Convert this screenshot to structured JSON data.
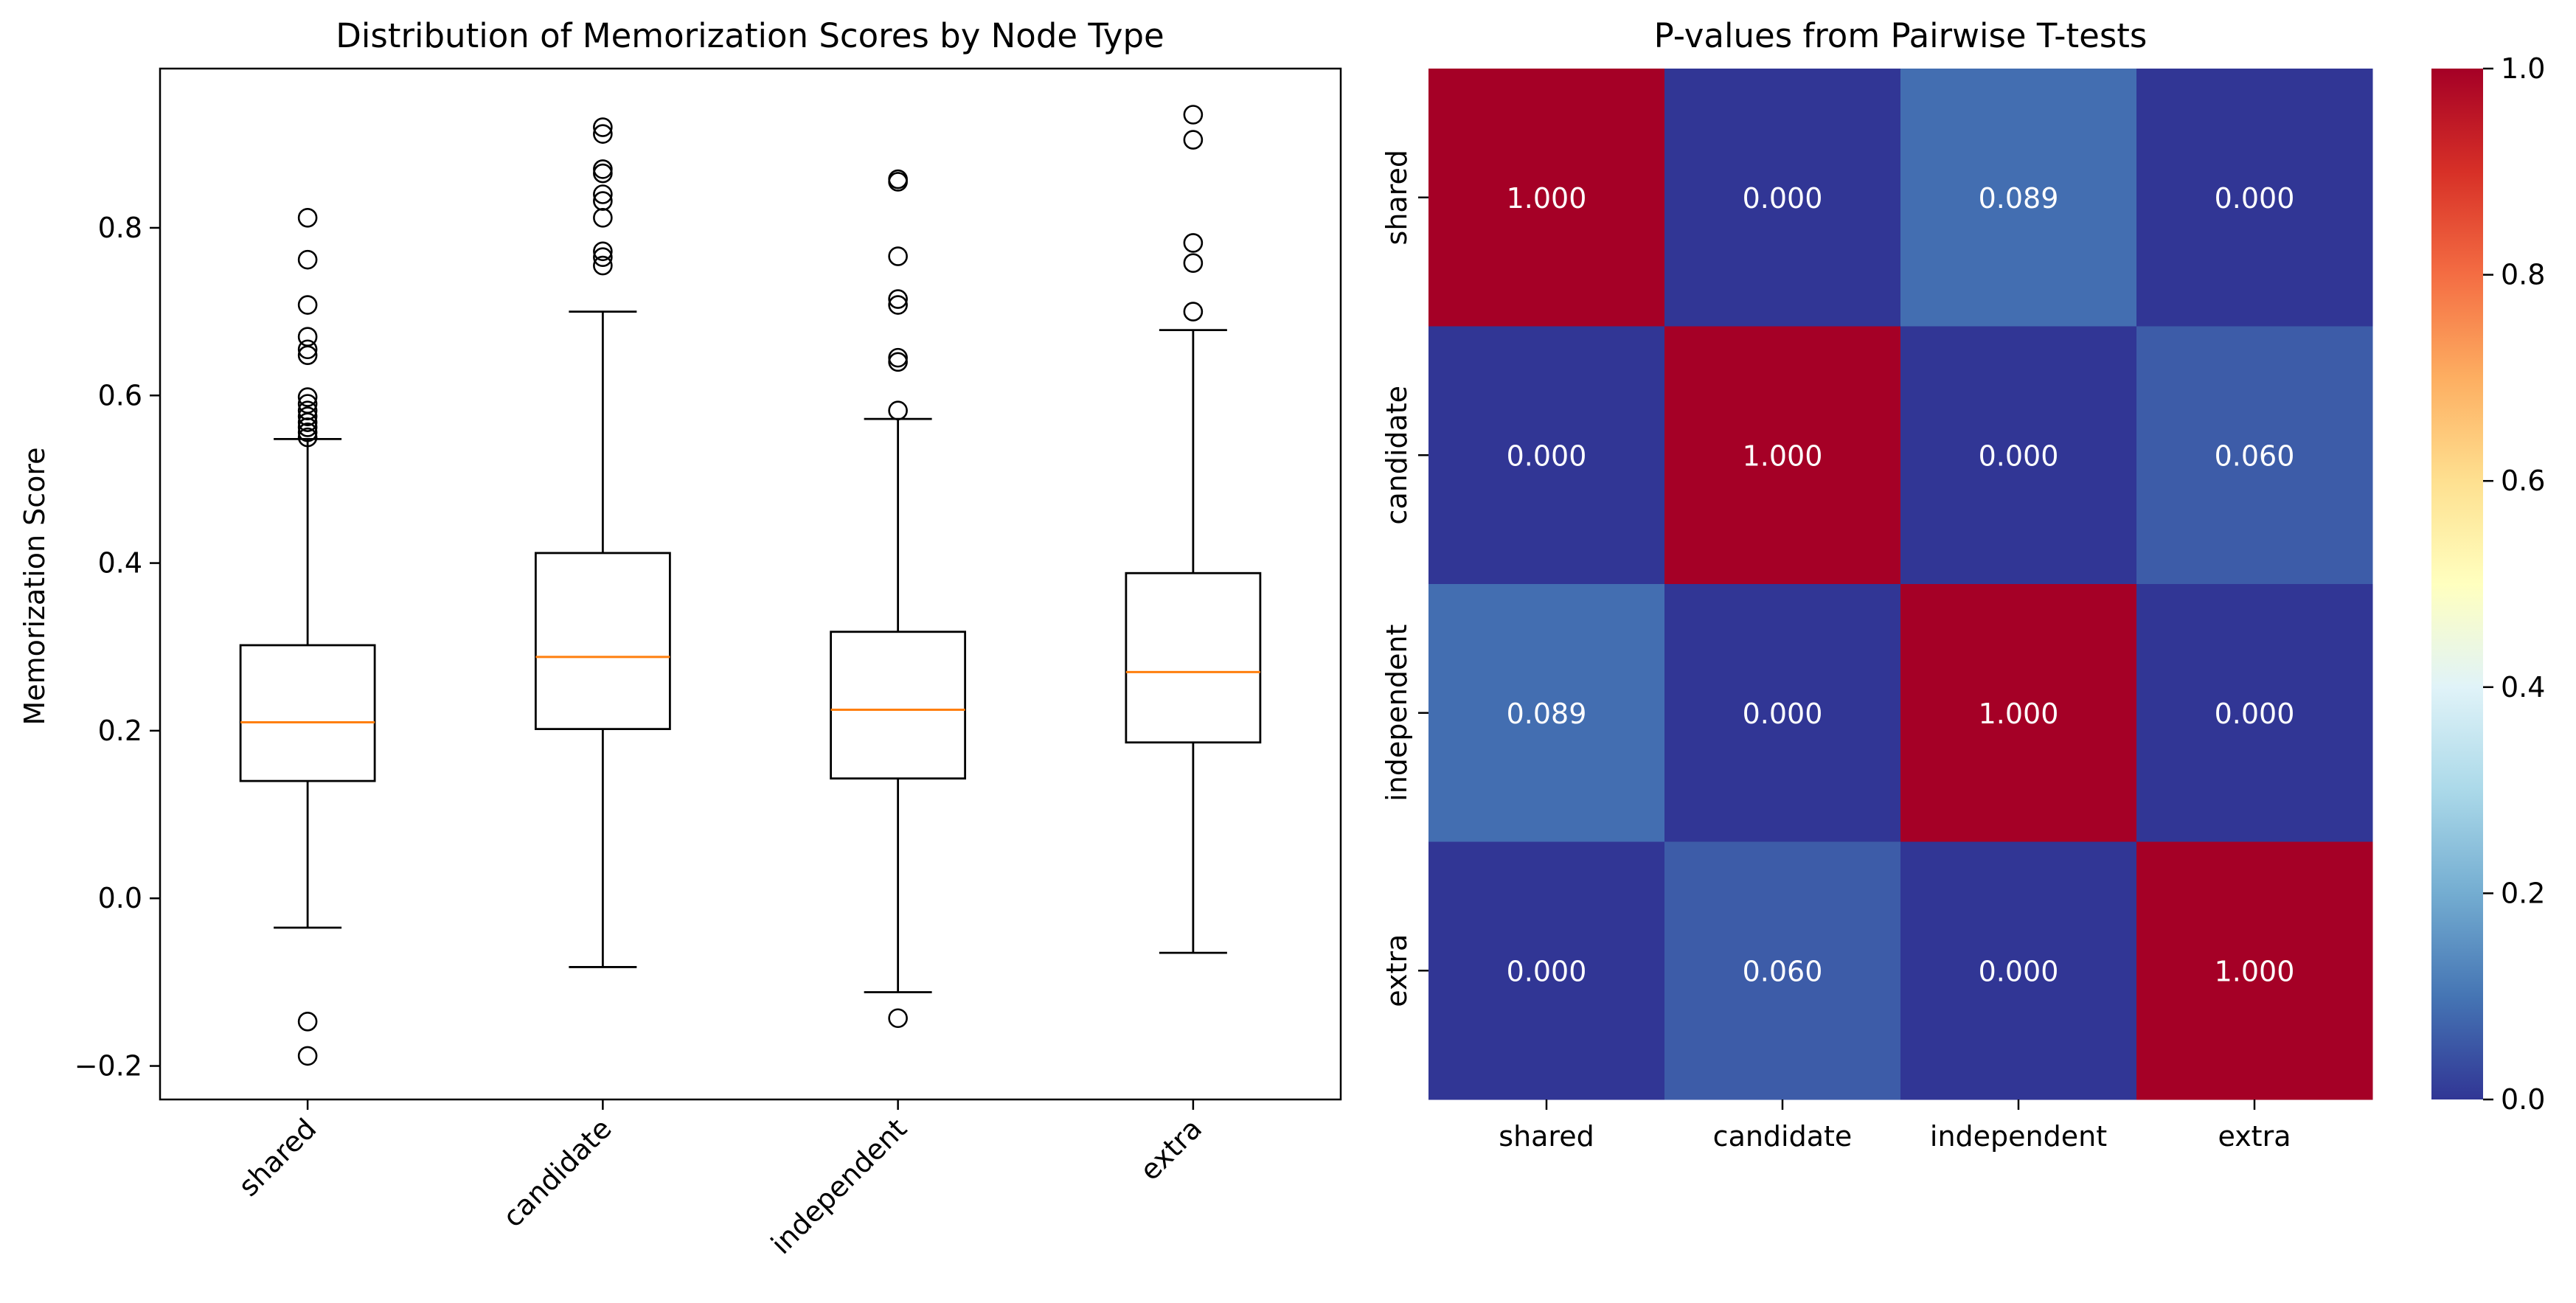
{
  "chart_data": [
    {
      "type": "box",
      "title": "Distribution of Memorization Scores by Node Type",
      "xlabel": "",
      "ylabel": "Memorization Score",
      "ylim": [
        -0.24,
        0.99
      ],
      "yticks": [
        -0.2,
        0.0,
        0.2,
        0.4,
        0.6,
        0.8
      ],
      "ytick_labels": [
        "−0.2",
        "0.0",
        "0.2",
        "0.4",
        "0.6",
        "0.8"
      ],
      "grid": false,
      "colors": {
        "box": "#000000",
        "median": "#ff7f0e"
      },
      "categories": [
        "shared",
        "candidate",
        "independent",
        "extra"
      ],
      "boxes": [
        {
          "label": "shared",
          "whisker_low": -0.035,
          "q1": 0.14,
          "median": 0.21,
          "q3": 0.302,
          "whisker_high": 0.548,
          "outliers": [
            0.812,
            0.762,
            0.708,
            0.67,
            0.655,
            0.648,
            0.598,
            0.59,
            0.582,
            0.575,
            0.568,
            0.562,
            0.556,
            0.55,
            -0.147,
            -0.188
          ]
        },
        {
          "label": "candidate",
          "whisker_low": -0.082,
          "q1": 0.202,
          "median": 0.288,
          "q3": 0.412,
          "whisker_high": 0.7,
          "outliers": [
            0.92,
            0.912,
            0.87,
            0.865,
            0.84,
            0.832,
            0.812,
            0.772,
            0.765,
            0.755
          ]
        },
        {
          "label": "independent",
          "whisker_low": -0.112,
          "q1": 0.143,
          "median": 0.225,
          "q3": 0.318,
          "whisker_high": 0.572,
          "outliers": [
            0.858,
            0.855,
            0.766,
            0.715,
            0.708,
            0.645,
            0.64,
            0.582,
            -0.143
          ]
        },
        {
          "label": "extra",
          "whisker_low": -0.065,
          "q1": 0.186,
          "median": 0.27,
          "q3": 0.388,
          "whisker_high": 0.678,
          "outliers": [
            0.935,
            0.905,
            0.782,
            0.758,
            0.7
          ]
        }
      ]
    },
    {
      "type": "heatmap",
      "title": "P-values from Pairwise T-tests",
      "xlabel": "",
      "ylabel": "",
      "x_categories": [
        "shared",
        "candidate",
        "independent",
        "extra"
      ],
      "y_categories": [
        "shared",
        "candidate",
        "independent",
        "extra"
      ],
      "matrix": [
        [
          1.0,
          0.0,
          0.089,
          0.0
        ],
        [
          0.0,
          1.0,
          0.0,
          0.06
        ],
        [
          0.089,
          0.0,
          1.0,
          0.0
        ],
        [
          0.0,
          0.06,
          0.0,
          1.0
        ]
      ],
      "cell_labels": [
        [
          "1.000",
          "0.000",
          "0.089",
          "0.000"
        ],
        [
          "0.000",
          "1.000",
          "0.000",
          "0.060"
        ],
        [
          "0.089",
          "0.000",
          "1.000",
          "0.000"
        ],
        [
          "0.000",
          "0.060",
          "0.000",
          "1.000"
        ]
      ],
      "colormap": "RdYlBu_r",
      "colormap_stops": [
        "#313695",
        "#4575b4",
        "#74add1",
        "#abd9e9",
        "#e0f3f8",
        "#ffffbf",
        "#fee090",
        "#fdae61",
        "#f46d43",
        "#d73027",
        "#a50026"
      ],
      "vmin": 0.0,
      "vmax": 1.0,
      "colorbar_ticks": [
        0.0,
        0.2,
        0.4,
        0.6,
        0.8,
        1.0
      ],
      "colorbar_tick_labels": [
        "0.0",
        "0.2",
        "0.4",
        "0.6",
        "0.8",
        "1.0"
      ]
    }
  ]
}
